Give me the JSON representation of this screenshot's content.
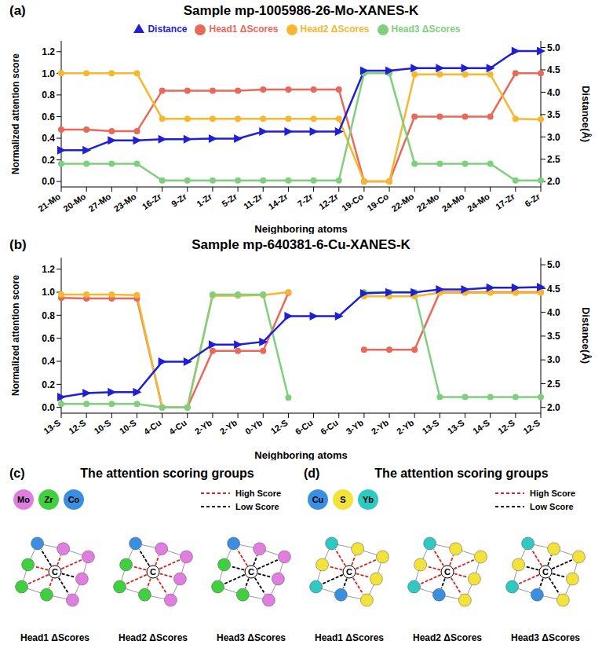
{
  "chart_data": [
    {
      "type": "line",
      "panel_label": "(a)",
      "title": "Sample mp-1005986-26-Mo-XANES-K",
      "x_label": "Neighboring atoms",
      "y_label": "Normalized attention score",
      "y2_label": "Distance(Å)",
      "categories": [
        "21-Mo",
        "20-Mo",
        "27-Mo",
        "23-Mo",
        "16-Zr",
        "9-Zr",
        "1-Zr",
        "5-Zr",
        "11-Zr",
        "14-Zr",
        "7-Zr",
        "12-Zr",
        "19-Co",
        "19-Co",
        "22-Mo",
        "22-Mo",
        "24-Mo",
        "24-Mo",
        "17-Zr",
        "6-Zr"
      ],
      "series": [
        {
          "name": "Head1 ΔScores",
          "color": "#e8685a",
          "marker": "circle",
          "values": [
            0.48,
            0.48,
            0.465,
            0.465,
            0.84,
            0.84,
            0.84,
            0.84,
            0.85,
            0.85,
            0.85,
            0.85,
            0,
            0,
            0.6,
            0.6,
            0.6,
            0.6,
            1.0,
            1.0
          ]
        },
        {
          "name": "Head2 ΔScores",
          "color": "#f5b82e",
          "marker": "circle",
          "values": [
            1.0,
            1.0,
            1.0,
            1.0,
            0.58,
            0.58,
            0.58,
            0.58,
            0.58,
            0.58,
            0.58,
            0.58,
            0,
            0,
            0.99,
            0.99,
            0.99,
            0.99,
            0.58,
            0.575
          ]
        },
        {
          "name": "Head3 ΔScores",
          "color": "#7fcf7f",
          "marker": "circle",
          "values": [
            0.165,
            0.165,
            0.165,
            0.165,
            0.01,
            0.01,
            0.01,
            0.01,
            0.01,
            0.01,
            0.01,
            0.01,
            1.0,
            1.0,
            0.165,
            0.165,
            0.165,
            0.165,
            0.01,
            0.01
          ]
        },
        {
          "name": "Distance",
          "color": "#1f1fd6",
          "marker": "triangle",
          "axis": "y2",
          "values": [
            2.7,
            2.7,
            2.92,
            2.92,
            2.95,
            2.95,
            2.96,
            2.96,
            3.12,
            3.12,
            3.12,
            3.12,
            4.48,
            4.48,
            4.54,
            4.54,
            4.54,
            4.54,
            4.92,
            4.92
          ]
        }
      ],
      "ylim": [
        -0.05,
        1.3
      ],
      "yticks": [
        {
          "value": 0,
          "label": "0.0"
        },
        0.2,
        0.4,
        0.6,
        0.8,
        {
          "value": 1,
          "label": "1.0"
        },
        1.2
      ],
      "y2lim": [
        1.88,
        5.15
      ],
      "y2ticks": [
        {
          "value": 2,
          "label": "2.0"
        },
        2.5,
        {
          "value": 3,
          "label": "3.0"
        },
        3.5,
        {
          "value": 4,
          "label": "4.0"
        },
        4.5,
        {
          "value": 5,
          "label": "5.0"
        }
      ],
      "legend": "top"
    },
    {
      "type": "line",
      "panel_label": "(b)",
      "title": "Sample mp-640381-6-Cu-XANES-K",
      "x_label": "Neighboring atoms",
      "y_label": "Normalized attention score",
      "y2_label": "Distance(Å)",
      "categories": [
        "13-S",
        "12-S",
        "10-S",
        "10-S",
        "4-Cu",
        "4-Cu",
        "2-Yb",
        "2-Yb",
        "0-Yb",
        "12-S",
        "6-Cu",
        "6-Cu",
        "3-Yb",
        "2-Yb",
        "2-Yb",
        "13-S",
        "13-S",
        "14-S",
        "12-S",
        "12-S"
      ],
      "series": [
        {
          "name": "Head1 ΔScores",
          "color": "#e8685a",
          "marker": "circle",
          "values": [
            0.95,
            0.945,
            0.945,
            0.945,
            0,
            0,
            0.49,
            0.49,
            0.49,
            0.995,
            null,
            null,
            0.5,
            0.5,
            0.5,
            1.0,
            1.0,
            1.0,
            1.0,
            1.0
          ]
        },
        {
          "name": "Head2 ΔScores",
          "color": "#f5b82e",
          "marker": "circle",
          "values": [
            0.98,
            0.98,
            0.98,
            0.975,
            0,
            0,
            0.97,
            0.97,
            0.975,
            1.0,
            null,
            null,
            0.965,
            0.965,
            0.965,
            0.995,
            0.995,
            0.995,
            0.995,
            0.995
          ]
        },
        {
          "name": "Head3 ΔScores",
          "color": "#7fcf7f",
          "marker": "circle",
          "values": [
            0.03,
            0.03,
            0.03,
            0.03,
            0,
            0,
            0.98,
            0.98,
            0.98,
            0.085,
            null,
            null,
            1.0,
            1.0,
            1.0,
            0.09,
            0.09,
            0.09,
            0.09,
            0.09
          ]
        },
        {
          "name": "Distance",
          "color": "#1f1fd6",
          "marker": "triangle",
          "axis": "y2",
          "values": [
            2.22,
            2.3,
            2.32,
            2.32,
            2.96,
            2.96,
            3.32,
            3.32,
            3.38,
            3.92,
            3.92,
            3.92,
            4.4,
            4.42,
            4.42,
            4.48,
            4.48,
            4.52,
            4.52,
            4.53
          ]
        }
      ],
      "ylim": [
        -0.05,
        1.3
      ],
      "yticks": [
        {
          "value": 0,
          "label": "0.0"
        },
        0.2,
        0.4,
        0.6,
        0.8,
        {
          "value": 1,
          "label": "1.0"
        },
        1.2
      ],
      "y2lim": [
        1.88,
        5.15
      ],
      "y2ticks": [
        {
          "value": 2,
          "label": "2.0"
        },
        2.5,
        {
          "value": 3,
          "label": "3.0"
        },
        3.5,
        {
          "value": 4,
          "label": "4.0"
        },
        4.5,
        {
          "value": 5,
          "label": "5.0"
        }
      ]
    }
  ],
  "diagrams": [
    {
      "panel_label": "(c)",
      "title": "The attention scoring groups",
      "center_label": "C",
      "elements": [
        {
          "name": "Mo",
          "color": "#e07ee0"
        },
        {
          "name": "Zr",
          "color": "#3fcf3f"
        },
        {
          "name": "Co",
          "color": "#3b8fe0"
        }
      ],
      "arrows": [
        {
          "label": "High Score",
          "color": "#e0201b"
        },
        {
          "label": "Low Score",
          "color": "#000000"
        }
      ],
      "heads": [
        "Head1 ΔScores",
        "Head2 ΔScores",
        "Head3 ΔScores"
      ]
    },
    {
      "panel_label": "(d)",
      "title": "The attention scoring groups",
      "center_label": "C",
      "elements": [
        {
          "name": "Cu",
          "color": "#3b8fe0"
        },
        {
          "name": "S",
          "color": "#f2e23a"
        },
        {
          "name": "Yb",
          "color": "#2ec9c0"
        }
      ],
      "arrows": [
        {
          "label": "High Score",
          "color": "#e0201b"
        },
        {
          "label": "Low Score",
          "color": "#000000"
        }
      ],
      "heads": [
        "Head1 ΔScores",
        "Head2 ΔScores",
        "Head3 ΔScores"
      ]
    }
  ]
}
